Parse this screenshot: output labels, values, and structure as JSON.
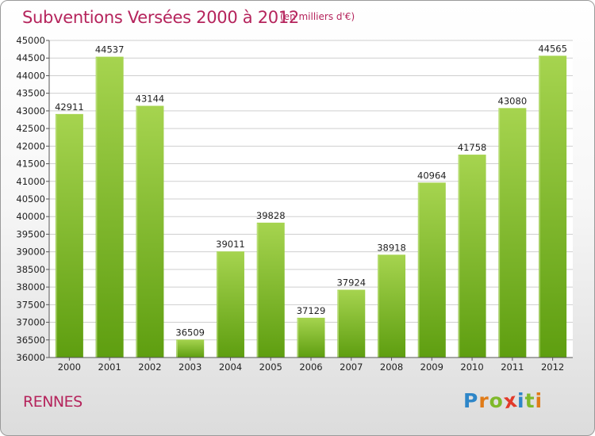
{
  "title": "Subventions Versées 2000 à 2012",
  "subtitle": "(en milliers d'€)",
  "city": "RENNES",
  "brand": {
    "letters": [
      "P",
      "r",
      "o",
      "x",
      "i",
      "t",
      "i"
    ],
    "colors": [
      "#2e86c8",
      "#e07b18",
      "#7fb92a",
      "#e23a2a",
      "#2e86c8",
      "#7fb92a",
      "#e07b18"
    ]
  },
  "colors": {
    "accent": "#b5245c",
    "bar_light": "#a6d44f",
    "bar_dark": "#5e9e10",
    "grid": "#cfcfcf",
    "text": "#222222"
  },
  "chart_data": {
    "type": "bar",
    "categories": [
      "2000",
      "2001",
      "2002",
      "2003",
      "2004",
      "2005",
      "2006",
      "2007",
      "2008",
      "2009",
      "2010",
      "2011",
      "2012"
    ],
    "values": [
      42911,
      44537,
      43144,
      36509,
      39011,
      39828,
      37129,
      37924,
      38918,
      40964,
      41758,
      43080,
      44565
    ],
    "ylim": [
      36000,
      45000
    ],
    "ytick_step": 500,
    "ytick_labels": [
      "36000",
      "36500",
      "37000",
      "37500",
      "38000",
      "38500",
      "39000",
      "39500",
      "40000",
      "40500",
      "41000",
      "41500",
      "42000",
      "42500",
      "43000",
      "43500",
      "44000",
      "44500",
      "45000"
    ],
    "grid": true,
    "xlabel": "",
    "ylabel": ""
  }
}
